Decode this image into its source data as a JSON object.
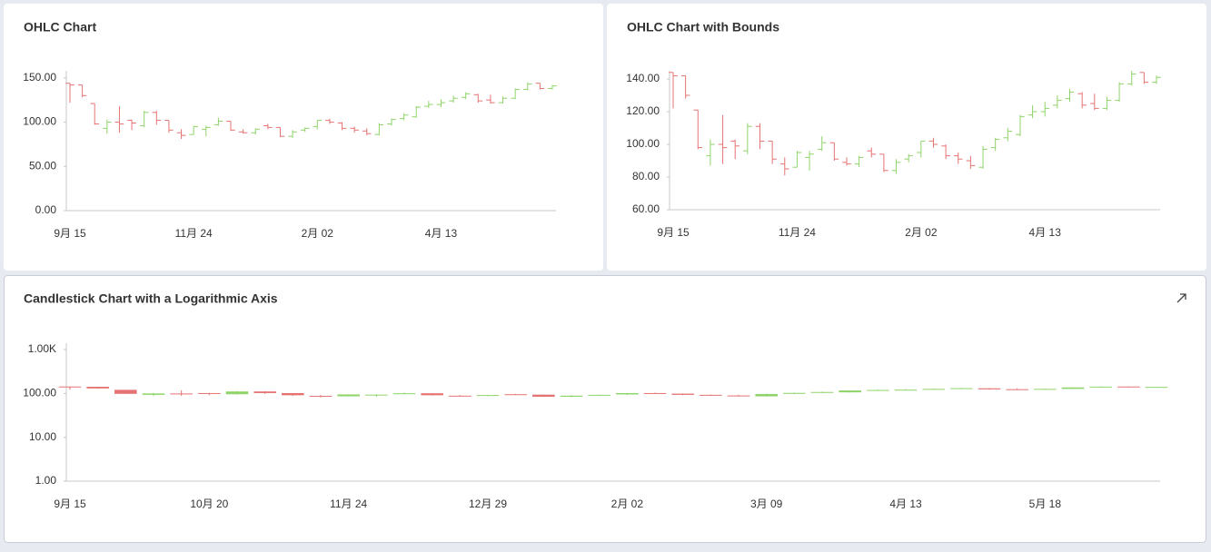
{
  "chart_data": [
    {
      "type": "ohlc",
      "title": "OHLC Chart",
      "categories": [
        "9月 15",
        null,
        null,
        null,
        null,
        null,
        null,
        null,
        null,
        null,
        "11月 24",
        null,
        null,
        null,
        null,
        null,
        null,
        null,
        null,
        null,
        "2月 02",
        null,
        null,
        null,
        null,
        null,
        null,
        null,
        null,
        null,
        "4月 13",
        null,
        null,
        null,
        null,
        null,
        null,
        null,
        null,
        null
      ],
      "open": [
        144,
        142,
        121,
        93,
        100,
        102,
        96,
        111,
        102,
        88,
        86,
        92,
        97,
        101,
        89,
        88,
        96,
        94,
        84,
        91,
        95,
        102,
        99,
        93,
        90,
        86,
        98,
        104,
        106,
        118,
        120,
        124,
        128,
        131,
        125,
        122,
        127,
        137,
        144,
        138
      ],
      "high": [
        144,
        142,
        121,
        103,
        118,
        103,
        113,
        113,
        102,
        92,
        96,
        96,
        105,
        101,
        92,
        93,
        98,
        94,
        91,
        94,
        102,
        104,
        100,
        95,
        93,
        99,
        104,
        110,
        118,
        124,
        126,
        130,
        134,
        132,
        131,
        129,
        138,
        145,
        144,
        142
      ],
      "low": [
        122,
        128,
        97,
        87,
        88,
        91,
        94,
        97,
        88,
        81,
        86,
        84,
        96,
        90,
        87,
        86,
        92,
        83,
        82,
        89,
        92,
        98,
        91,
        88,
        85,
        85,
        96,
        102,
        105,
        116,
        117,
        122,
        126,
        122,
        121,
        121,
        126,
        136,
        137,
        137
      ],
      "close": [
        142,
        130,
        98,
        100,
        98,
        99,
        111,
        102,
        91,
        85,
        95,
        94,
        101,
        91,
        88,
        92,
        94,
        84,
        89,
        93,
        102,
        100,
        93,
        91,
        87,
        97,
        103,
        108,
        117,
        120,
        122,
        127,
        132,
        124,
        122,
        127,
        137,
        143,
        138,
        141
      ],
      "up_color": "#8fd46a",
      "down_color": "#e57373",
      "ylim": [
        0,
        158
      ],
      "yticks": [
        {
          "value": 0,
          "label": "0.00"
        },
        {
          "value": 50,
          "label": "50.00"
        },
        {
          "value": 100,
          "label": "100.00"
        },
        {
          "value": 150,
          "label": "150.00"
        }
      ]
    },
    {
      "type": "ohlc",
      "title": "OHLC Chart with Bounds",
      "categories": [
        "9月 15",
        null,
        null,
        null,
        null,
        null,
        null,
        null,
        null,
        null,
        "11月 24",
        null,
        null,
        null,
        null,
        null,
        null,
        null,
        null,
        null,
        "2月 02",
        null,
        null,
        null,
        null,
        null,
        null,
        null,
        null,
        null,
        "4月 13",
        null,
        null,
        null,
        null,
        null,
        null,
        null,
        null,
        null
      ],
      "open": [
        144,
        142,
        121,
        93,
        100,
        102,
        96,
        111,
        102,
        88,
        86,
        92,
        97,
        101,
        89,
        88,
        96,
        94,
        84,
        91,
        95,
        102,
        99,
        93,
        90,
        86,
        98,
        104,
        106,
        118,
        120,
        124,
        128,
        131,
        125,
        122,
        127,
        137,
        144,
        138
      ],
      "high": [
        144,
        142,
        121,
        103,
        118,
        103,
        113,
        113,
        102,
        92,
        96,
        96,
        105,
        101,
        92,
        93,
        98,
        94,
        91,
        94,
        102,
        104,
        100,
        95,
        93,
        99,
        104,
        110,
        118,
        124,
        126,
        130,
        134,
        132,
        131,
        129,
        138,
        145,
        144,
        142
      ],
      "low": [
        122,
        128,
        97,
        87,
        88,
        91,
        94,
        97,
        88,
        81,
        86,
        84,
        96,
        90,
        87,
        86,
        92,
        83,
        82,
        89,
        92,
        98,
        91,
        88,
        85,
        85,
        96,
        102,
        105,
        116,
        117,
        122,
        126,
        122,
        121,
        121,
        126,
        136,
        137,
        137
      ],
      "close": [
        142,
        130,
        98,
        100,
        98,
        99,
        111,
        102,
        91,
        85,
        95,
        94,
        101,
        91,
        88,
        92,
        94,
        84,
        89,
        93,
        102,
        100,
        93,
        91,
        87,
        97,
        103,
        108,
        117,
        120,
        122,
        127,
        132,
        124,
        122,
        127,
        137,
        143,
        138,
        141
      ],
      "up_color": "#8fd46a",
      "down_color": "#e57373",
      "ylim": [
        60,
        145
      ],
      "yticks": [
        {
          "value": 60,
          "label": "60.00"
        },
        {
          "value": 80,
          "label": "80.00"
        },
        {
          "value": 100,
          "label": "100.00"
        },
        {
          "value": 120,
          "label": "120.00"
        },
        {
          "value": 140,
          "label": "140.00"
        }
      ]
    },
    {
      "type": "candlestick",
      "title": "Candlestick Chart with a Logarithmic Axis",
      "categories": [
        "9月 15",
        null,
        null,
        null,
        null,
        "10月 20",
        null,
        null,
        null,
        null,
        "11月 24",
        null,
        null,
        null,
        null,
        "12月 29",
        null,
        null,
        null,
        null,
        "2月 02",
        null,
        null,
        null,
        null,
        "3月 09",
        null,
        null,
        null,
        null,
        "4月 13",
        null,
        null,
        null,
        null,
        "5月 18",
        null,
        null,
        null,
        null
      ],
      "open": [
        144,
        142,
        121,
        93,
        100,
        102,
        96,
        111,
        102,
        88,
        86,
        92,
        97,
        101,
        89,
        88,
        96,
        94,
        84,
        91,
        95,
        102,
        99,
        93,
        90,
        86,
        98,
        104,
        106,
        118,
        120,
        124,
        128,
        131,
        125,
        122,
        127,
        137,
        144,
        138
      ],
      "high": [
        144,
        142,
        121,
        103,
        118,
        103,
        113,
        113,
        102,
        92,
        96,
        96,
        105,
        101,
        92,
        93,
        98,
        94,
        91,
        94,
        102,
        104,
        100,
        95,
        93,
        99,
        104,
        110,
        118,
        124,
        126,
        130,
        134,
        132,
        131,
        129,
        138,
        145,
        144,
        142
      ],
      "low": [
        122,
        128,
        97,
        87,
        88,
        91,
        94,
        97,
        88,
        81,
        86,
        84,
        96,
        90,
        87,
        86,
        92,
        83,
        82,
        89,
        92,
        98,
        91,
        88,
        85,
        85,
        96,
        102,
        105,
        116,
        117,
        122,
        126,
        122,
        121,
        121,
        126,
        136,
        137,
        137
      ],
      "close": [
        142,
        130,
        98,
        100,
        98,
        99,
        111,
        102,
        91,
        85,
        95,
        94,
        101,
        91,
        88,
        92,
        94,
        84,
        89,
        93,
        102,
        100,
        93,
        91,
        87,
        97,
        103,
        108,
        117,
        120,
        122,
        127,
        132,
        124,
        122,
        127,
        137,
        143,
        138,
        141
      ],
      "up_color": "#8fd46a",
      "down_color": "#e57373",
      "log_scale": true,
      "ylim": [
        1,
        1400
      ],
      "yticks": [
        {
          "value": 1,
          "label": "1.00"
        },
        {
          "value": 10,
          "label": "10.00"
        },
        {
          "value": 100,
          "label": "100.00"
        },
        {
          "value": 1000,
          "label": "1.00K"
        }
      ]
    }
  ]
}
